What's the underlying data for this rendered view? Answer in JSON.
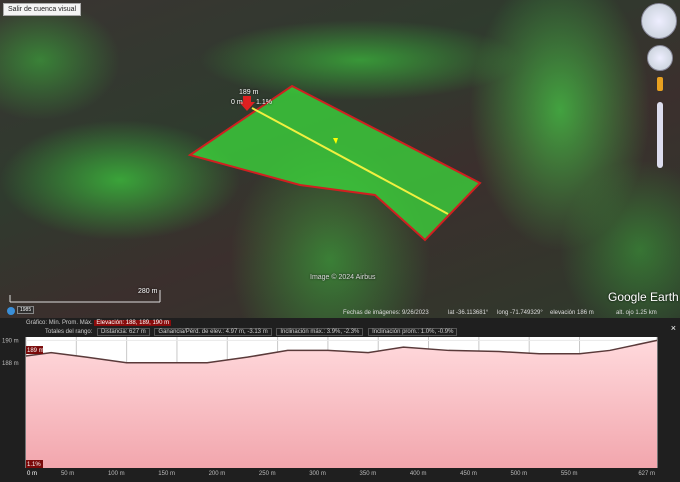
{
  "map": {
    "exit_button": "Salir de cuenca visual",
    "marker_elev": "189 m",
    "marker_dist": "0 m",
    "marker_slope": "1.1%",
    "attribution": "Image © 2024 Airbus",
    "logo": "Google Earth",
    "scale_label": "280 m",
    "year_badge": "1985",
    "status": {
      "dates": "Fechas de imágenes: 9/26/2023",
      "lat": "lat -36.113681°",
      "long": "long -71.749329°",
      "elev": "elevación 186 m",
      "eye": "alt. ojo 1.25 km"
    }
  },
  "panel": {
    "graph_label": "Gráfico:",
    "min": "Mín.",
    "avg": "Prom.",
    "max": "Máx.",
    "elevation": "Elevación: 188, 189, 190 m",
    "range_totals": "Totales del rango:",
    "distance": "Distancia: 627 m",
    "gain": "Ganancia/Pérd. de elev.: 4.97 m, -3.13 m",
    "max_slope": "Inclinación máx.: 3.9%, -2.3%",
    "avg_slope": "Inclinación prom.: 1.0%, -0.9%",
    "close": "×"
  },
  "chart_data": {
    "type": "area",
    "xlabel": "",
    "ylabel": "",
    "xlim": [
      0,
      627
    ],
    "ylim": [
      178.6,
      190.3
    ],
    "x_ticks": [
      "0 m",
      "50 m",
      "100 m",
      "150 m",
      "200 m",
      "250 m",
      "300 m",
      "350 m",
      "400 m",
      "450 m",
      "500 m",
      "550 m",
      "627 m"
    ],
    "y_ticks": [
      "190 m",
      "188 m"
    ],
    "cursor_elev": "189 m",
    "cursor_slope": "1.1%",
    "x": [
      0,
      25,
      60,
      100,
      150,
      180,
      220,
      260,
      300,
      340,
      375,
      420,
      470,
      510,
      550,
      580,
      627
    ],
    "y": [
      188.6,
      188.9,
      188.5,
      188.0,
      188.0,
      188.0,
      188.5,
      189.1,
      189.1,
      188.9,
      189.4,
      189.1,
      189.0,
      188.8,
      188.8,
      189.1,
      190.0
    ],
    "colors": {
      "fill_top": "#ffd9dc",
      "fill_bottom": "#f2a6ad",
      "line": "#5a3a3a",
      "grid": "#c8c8c8"
    }
  }
}
